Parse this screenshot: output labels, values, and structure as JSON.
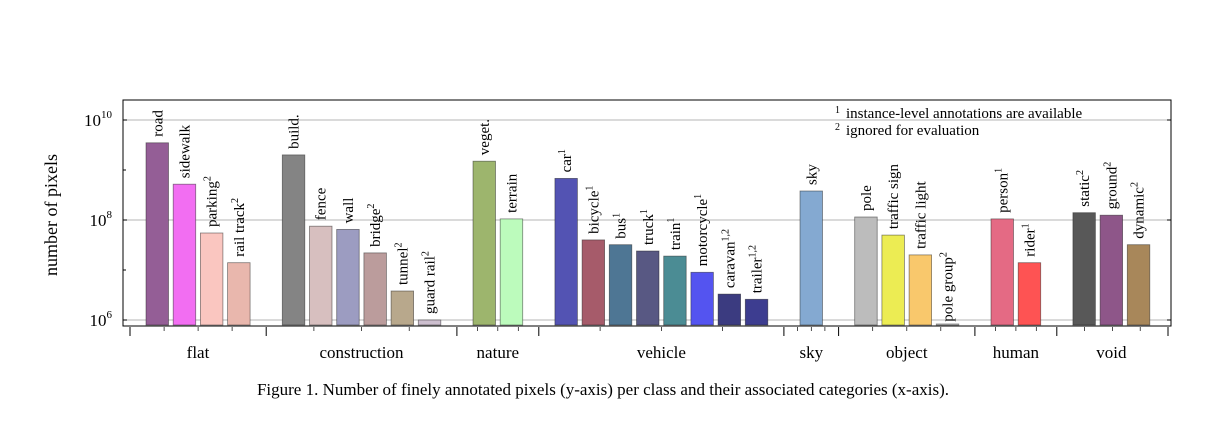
{
  "chart_data": {
    "type": "bar",
    "ylabel": "number of pixels",
    "yscale": "log",
    "ylim": [
      600000,
      25000000000
    ],
    "yticks": [
      {
        "exp": "10",
        "base": "10"
      },
      {
        "exp": "8",
        "base": "10"
      },
      {
        "exp": "6",
        "base": "10"
      }
    ],
    "yticks_values": [
      10000000000,
      100000000,
      1000000
    ],
    "grid": "horizontal",
    "legend": {
      "position": "top-right",
      "items": [
        {
          "mark": "1",
          "text": "instance-level annotations are available"
        },
        {
          "mark": "2",
          "text": "ignored for evaluation"
        }
      ]
    },
    "groups": [
      {
        "name": "flat",
        "bars": [
          {
            "label": "road",
            "sup": "",
            "value": 3500000000,
            "color": "#945e96"
          },
          {
            "label": "sidewalk",
            "sup": "",
            "value": 520000000,
            "color": "#f26ef2"
          },
          {
            "label": "parking",
            "sup": "2",
            "value": 55000000,
            "color": "#fac6c0"
          },
          {
            "label": "rail track",
            "sup": "2",
            "value": 14000000,
            "color": "#e9b7ad"
          }
        ]
      },
      {
        "name": "construction",
        "bars": [
          {
            "label": "build.",
            "sup": "",
            "value": 2000000000,
            "color": "#848484"
          },
          {
            "label": "fence",
            "sup": "",
            "value": 75000000,
            "color": "#d7bfbf"
          },
          {
            "label": "wall",
            "sup": "",
            "value": 65000000,
            "color": "#9c9cc1"
          },
          {
            "label": "bridge",
            "sup": "2",
            "value": 22000000,
            "color": "#bb9c9c"
          },
          {
            "label": "tunnel",
            "sup": "2",
            "value": 3800000,
            "color": "#b8a88c"
          },
          {
            "label": "guard rail",
            "sup": "2",
            "value": 1000000,
            "color": "#cdbfcf"
          }
        ]
      },
      {
        "name": "nature",
        "bars": [
          {
            "label": "veget.",
            "sup": "",
            "value": 1500000000,
            "color": "#9db56d"
          },
          {
            "label": "terrain",
            "sup": "",
            "value": 105000000,
            "color": "#bcfbbc"
          }
        ]
      },
      {
        "name": "vehicle",
        "bars": [
          {
            "label": "car",
            "sup": "1",
            "value": 680000000,
            "color": "#5353b3"
          },
          {
            "label": "bicycle",
            "sup": "1",
            "value": 40000000,
            "color": "#a65b6a"
          },
          {
            "label": "bus",
            "sup": "1",
            "value": 32000000,
            "color": "#4e7694"
          },
          {
            "label": "truck",
            "sup": "1",
            "value": 24000000,
            "color": "#585883"
          },
          {
            "label": "train",
            "sup": "1",
            "value": 19000000,
            "color": "#4b8c94"
          },
          {
            "label": "motorcycle",
            "sup": "1",
            "value": 9000000,
            "color": "#5454f0"
          },
          {
            "label": "caravan",
            "sup": "1,2",
            "value": 3300000,
            "color": "#3b3b80"
          },
          {
            "label": "trailer",
            "sup": "1,2",
            "value": 2600000,
            "color": "#3d3d90"
          }
        ]
      },
      {
        "name": "sky",
        "bars": [
          {
            "label": "sky",
            "sup": "",
            "value": 380000000,
            "color": "#84a9d1"
          }
        ]
      },
      {
        "name": "object",
        "bars": [
          {
            "label": "pole",
            "sup": "",
            "value": 115000000,
            "color": "#bcbcbc"
          },
          {
            "label": "traffic sign",
            "sup": "",
            "value": 50000000,
            "color": "#ecec53"
          },
          {
            "label": "traffic light",
            "sup": "",
            "value": 20000000,
            "color": "#f9c86c"
          },
          {
            "label": "pole group",
            "sup": "2",
            "value": 700000,
            "color": "#e6e6e6"
          }
        ]
      },
      {
        "name": "human",
        "bars": [
          {
            "label": "person",
            "sup": "1",
            "value": 105000000,
            "color": "#e46a84"
          },
          {
            "label": "rider",
            "sup": "1",
            "value": 14000000,
            "color": "#fe5353"
          }
        ]
      },
      {
        "name": "void",
        "bars": [
          {
            "label": "static",
            "sup": "2",
            "value": 140000000,
            "color": "#585858"
          },
          {
            "label": "ground",
            "sup": "2",
            "value": 125000000,
            "color": "#8e5689"
          },
          {
            "label": "dynamic",
            "sup": "2",
            "value": 32000000,
            "color": "#a8875a"
          }
        ]
      }
    ]
  },
  "caption": "Figure 1. Number of finely annotated pixels (y-axis) per class and their associated categories (x-axis)."
}
